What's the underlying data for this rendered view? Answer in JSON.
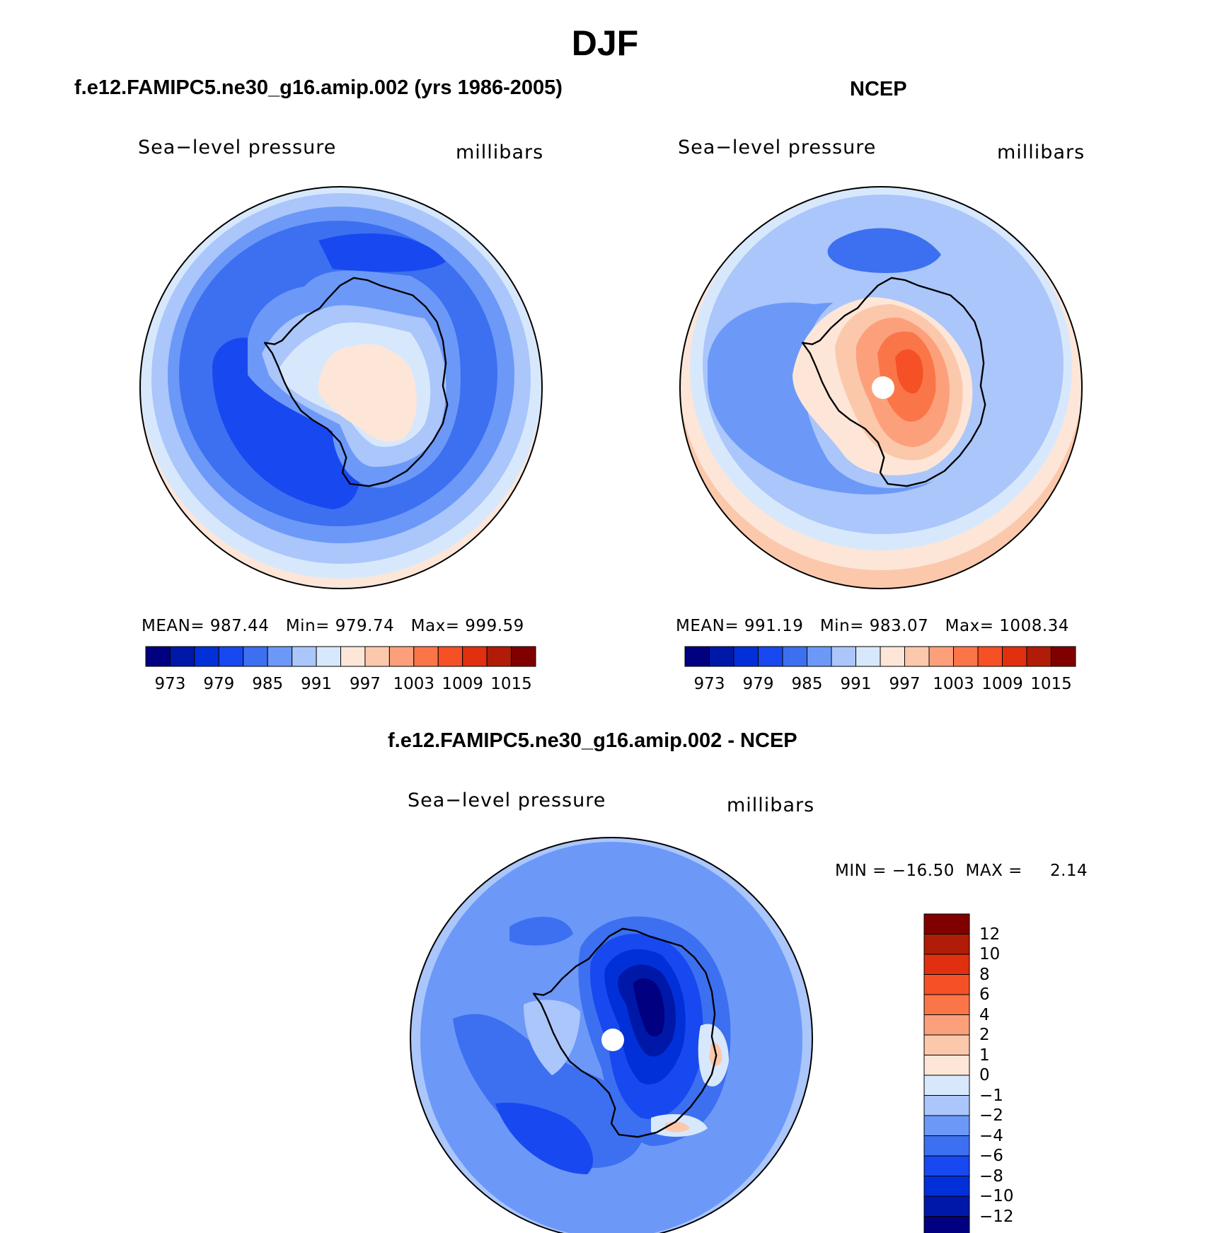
{
  "title": "DJF",
  "panels": [
    {
      "id": "model",
      "header": "f.e12.FAMIPC5.ne30_g16.amip.002 (yrs 1986-2005)",
      "variable": "Sea−level pressure",
      "units": "millibars",
      "stats": {
        "mean_label": "MEAN=",
        "mean": "987.44",
        "min_label": "Min=",
        "min": "979.74",
        "max_label": "Max=",
        "max": "999.59"
      }
    },
    {
      "id": "obs",
      "header": "NCEP",
      "variable": "Sea−level pressure",
      "units": "millibars",
      "stats": {
        "mean_label": "MEAN=",
        "mean": "991.19",
        "min_label": "Min=",
        "min": "983.07",
        "max_label": "Max=",
        "max": "1008.34"
      }
    },
    {
      "id": "diff",
      "header": "f.e12.FAMIPC5.ne30_g16.amip.002 - NCEP",
      "variable": "Sea−level pressure",
      "units": "millibars",
      "stats": {
        "min_label": "MIN =",
        "min": "−16.50",
        "max_label": "MAX =",
        "max": "2.14"
      }
    }
  ],
  "abs_colorbar": {
    "colors": [
      "#000080",
      "#0018a8",
      "#0230d8",
      "#1848f0",
      "#3c70f0",
      "#6c98f8",
      "#aac6fa",
      "#d8e8fc",
      "#fde6d8",
      "#fcc8ac",
      "#fca07c",
      "#fa7648",
      "#f65026",
      "#e03010",
      "#b01c08",
      "#800000"
    ],
    "tick_labels": [
      "973",
      "979",
      "985",
      "991",
      "997",
      "1003",
      "1009",
      "1015"
    ]
  },
  "diff_colorbar": {
    "colors": [
      "#800000",
      "#b01c08",
      "#e03010",
      "#f65026",
      "#fa7648",
      "#fca07c",
      "#fcc8ac",
      "#fde6d8",
      "#d8e8fc",
      "#aac6fa",
      "#6c98f8",
      "#3c70f0",
      "#1848f0",
      "#0230d8",
      "#0018a8",
      "#000080"
    ],
    "tick_labels": [
      "12",
      "10",
      "8",
      "6",
      "4",
      "2",
      "1",
      "0",
      "−1",
      "−2",
      "−4",
      "−6",
      "−8",
      "−10",
      "−12"
    ]
  },
  "legend_colors": {
    "ocean_model": "#3c70f0",
    "ocean_model_low": "#1848f0",
    "obs_high": "#fa7648",
    "diff_low": "#000080"
  }
}
